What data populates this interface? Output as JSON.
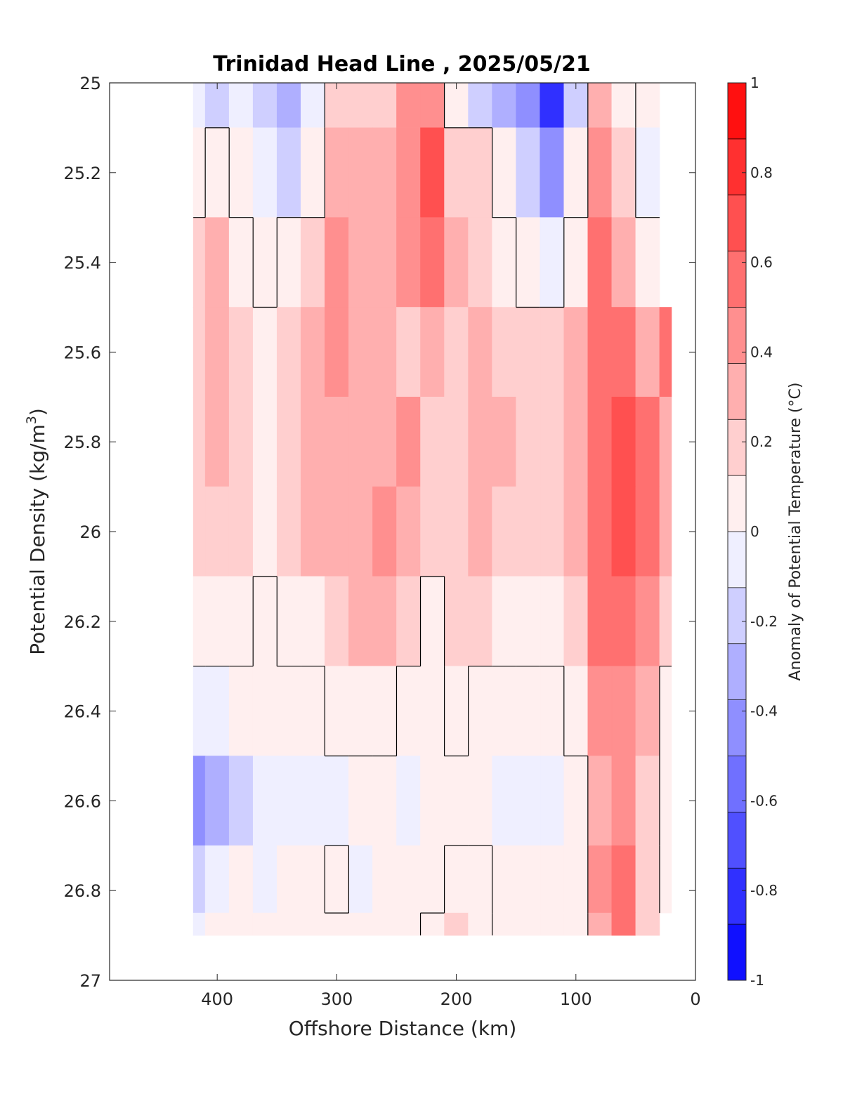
{
  "chart_data": {
    "type": "heatmap",
    "title": "Trinidad Head Line , 2025/05/21",
    "xlabel": "Offshore Distance (km)",
    "ylabel_main": "Potential Density (kg/m",
    "ylabel_sup": "3",
    "ylabel_end": ")",
    "xlim": [
      490,
      0
    ],
    "ylim": [
      25,
      27
    ],
    "x_reversed": true,
    "y_reversed": true,
    "x_ticks": [
      400,
      300,
      200,
      100,
      0
    ],
    "x_tick_labels": [
      "400",
      "300",
      "200",
      "100",
      "0"
    ],
    "y_ticks": [
      25,
      25.2,
      25.4,
      25.6,
      25.8,
      26,
      26.2,
      26.4,
      26.6,
      26.8,
      27
    ],
    "y_tick_labels": [
      "25",
      "25.2",
      "25.4",
      "25.6",
      "25.8",
      "26",
      "26.2",
      "26.4",
      "26.6",
      "26.8",
      "27"
    ],
    "colorbar": {
      "label": "Anomaly of Potential Temperature (°C)",
      "range": [
        -1,
        1
      ],
      "ticks": [
        1,
        0.8,
        0.6,
        0.4,
        0.2,
        0,
        -0.2,
        -0.4,
        -0.6,
        -0.8,
        -1
      ],
      "tick_labels": [
        "1",
        "0.8",
        "0.6",
        "0.4",
        "0.2",
        "0",
        "-0.2",
        "-0.4",
        "-0.6",
        "-0.8",
        "-1"
      ],
      "colormap": "blue-white-red",
      "color_min": "#0000ff",
      "color_zero": "#ffffff",
      "color_max": "#ff0000"
    },
    "grid": false,
    "x": [
      420,
      400,
      380,
      360,
      340,
      320,
      300,
      280,
      260,
      240,
      220,
      200,
      180,
      160,
      140,
      120,
      100,
      80,
      60,
      40,
      20
    ],
    "y": [
      25.0,
      25.2,
      25.4,
      25.6,
      25.8,
      26.0,
      26.2,
      26.4,
      26.6,
      26.8,
      26.9
    ],
    "z": [
      [
        -0.1,
        -0.2,
        -0.1,
        -0.2,
        -0.3,
        -0.1,
        0.2,
        0.2,
        0.2,
        0.4,
        0.4,
        0.0,
        -0.2,
        -0.3,
        -0.5,
        -0.8,
        -0.2,
        0.3,
        0.1,
        0.0,
        null
      ],
      [
        0.0,
        0.1,
        0.0,
        -0.1,
        -0.2,
        0.0,
        0.3,
        0.3,
        0.3,
        0.4,
        0.7,
        0.2,
        0.2,
        0.0,
        -0.2,
        -0.4,
        0.0,
        0.4,
        0.2,
        -0.1,
        null
      ],
      [
        0.2,
        0.3,
        0.1,
        0.0,
        0.1,
        0.2,
        0.4,
        0.3,
        0.3,
        0.4,
        0.6,
        0.3,
        0.2,
        0.1,
        0.0,
        -0.1,
        0.1,
        0.5,
        0.3,
        0.1,
        null
      ],
      [
        0.2,
        0.3,
        0.2,
        0.1,
        0.2,
        0.3,
        0.4,
        0.3,
        0.3,
        0.2,
        0.3,
        0.2,
        0.3,
        0.2,
        0.2,
        0.2,
        0.3,
        0.6,
        0.5,
        0.3,
        0.5
      ],
      [
        0.2,
        0.3,
        0.2,
        0.1,
        0.2,
        0.3,
        0.3,
        0.3,
        0.3,
        0.4,
        0.2,
        0.2,
        0.3,
        0.3,
        0.2,
        0.2,
        0.3,
        0.6,
        0.7,
        0.6,
        0.3
      ],
      [
        0.2,
        0.2,
        0.2,
        0.1,
        0.2,
        0.3,
        0.3,
        0.3,
        0.4,
        0.3,
        0.2,
        0.2,
        0.3,
        0.2,
        0.2,
        0.2,
        0.3,
        0.6,
        0.7,
        0.6,
        0.3
      ],
      [
        0.1,
        0.1,
        0.1,
        0.0,
        0.1,
        0.1,
        0.2,
        0.3,
        0.3,
        0.2,
        0.0,
        0.2,
        0.2,
        0.1,
        0.1,
        0.1,
        0.2,
        0.5,
        0.6,
        0.4,
        0.2
      ],
      [
        -0.1,
        -0.1,
        0.0,
        0.0,
        0.0,
        0.0,
        0.1,
        0.1,
        0.1,
        0.0,
        0.0,
        0.1,
        0.0,
        0.0,
        0.0,
        0.0,
        0.1,
        0.4,
        0.4,
        0.3,
        0.0
      ],
      [
        -0.4,
        -0.3,
        -0.2,
        -0.1,
        -0.1,
        -0.1,
        -0.1,
        0.0,
        0.0,
        -0.1,
        0.0,
        0.0,
        0.0,
        -0.1,
        -0.1,
        -0.1,
        0.0,
        0.3,
        0.4,
        0.2,
        0.0
      ],
      [
        -0.2,
        -0.1,
        0.0,
        -0.1,
        0.0,
        0.0,
        0.1,
        -0.1,
        0.0,
        0.0,
        0.0,
        0.1,
        0.1,
        0.0,
        0.0,
        0.0,
        0.0,
        0.4,
        0.6,
        0.2,
        0.0
      ],
      [
        -0.1,
        0.0,
        0.0,
        0.0,
        0.0,
        0.0,
        0.0,
        0.0,
        0.0,
        0.0,
        0.1,
        0.2,
        0.1,
        0.0,
        0.0,
        0.0,
        0.0,
        0.3,
        0.5,
        0.2,
        null
      ]
    ]
  }
}
